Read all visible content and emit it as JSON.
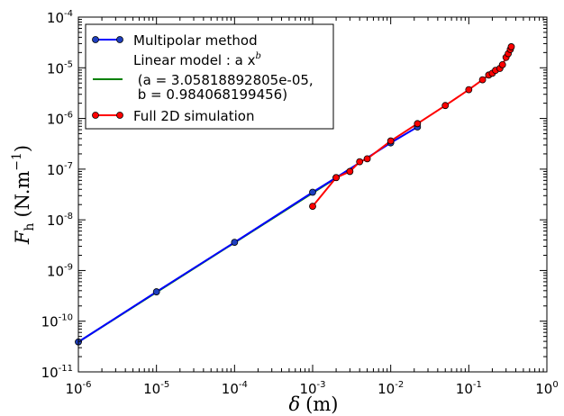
{
  "chart_data": {
    "type": "line",
    "xscale": "log",
    "yscale": "log",
    "xlim": [
      1e-06,
      1
    ],
    "ylim": [
      1e-11,
      0.0001
    ],
    "xlabel_main": "δ",
    "xlabel_unit": "(m)",
    "ylabel_main": "F",
    "ylabel_sub": "h",
    "ylabel_unit": "(N.m",
    "ylabel_exp": "−1",
    "ylabel_close": ")",
    "xticks": [
      {
        "value": 1e-06,
        "base": "10",
        "exp": "-6"
      },
      {
        "value": 1e-05,
        "base": "10",
        "exp": "-5"
      },
      {
        "value": 0.0001,
        "base": "10",
        "exp": "-4"
      },
      {
        "value": 0.001,
        "base": "10",
        "exp": "-3"
      },
      {
        "value": 0.01,
        "base": "10",
        "exp": "-2"
      },
      {
        "value": 0.1,
        "base": "10",
        "exp": "-1"
      },
      {
        "value": 1,
        "base": "10",
        "exp": "0"
      }
    ],
    "yticks": [
      {
        "value": 1e-11,
        "base": "10",
        "exp": "-11"
      },
      {
        "value": 1e-10,
        "base": "10",
        "exp": "-10"
      },
      {
        "value": 1e-09,
        "base": "10",
        "exp": "-9"
      },
      {
        "value": 1e-08,
        "base": "10",
        "exp": "-8"
      },
      {
        "value": 1e-07,
        "base": "10",
        "exp": "-7"
      },
      {
        "value": 1e-06,
        "base": "10",
        "exp": "-6"
      },
      {
        "value": 1e-05,
        "base": "10",
        "exp": "-5"
      },
      {
        "value": 0.0001,
        "base": "10",
        "exp": "-4"
      }
    ],
    "series": [
      {
        "key": "linear",
        "color": "#008000",
        "marker": "none",
        "x": [
          1e-06,
          0.0025
        ],
        "y": [
          3.9e-11,
          8.3e-08
        ]
      },
      {
        "key": "multipolar",
        "color": "#0000ff",
        "marker": "circle",
        "x": [
          1e-06,
          1e-05,
          0.0001,
          0.001,
          0.002,
          0.01,
          0.022
        ],
        "y": [
          3.9e-11,
          3.8e-10,
          3.6e-09,
          3.5e-08,
          6.8e-08,
          3.3e-07,
          6.8e-07
        ]
      },
      {
        "key": "full2d",
        "color": "#ff0000",
        "marker": "circle",
        "x": [
          0.001,
          0.002,
          0.003,
          0.004,
          0.005,
          0.01,
          0.022,
          0.05,
          0.1,
          0.15,
          0.18,
          0.2,
          0.22,
          0.25,
          0.27,
          0.3,
          0.32,
          0.34,
          0.35
        ],
        "y": [
          1.85e-08,
          6.8e-08,
          9e-08,
          1.4e-07,
          1.6e-07,
          3.6e-07,
          7.9e-07,
          1.8e-06,
          3.7e-06,
          5.8e-06,
          7.2e-06,
          7.8e-06,
          8.9e-06,
          9.7e-06,
          1.15e-05,
          1.6e-05,
          1.9e-05,
          2.3e-05,
          2.6e-05
        ]
      }
    ],
    "legend": {
      "placement": "top-left",
      "entries": [
        {
          "key": "multipolar",
          "line1": "Multipolar method",
          "line2": "",
          "line3": ""
        },
        {
          "key": "linear",
          "line1": "Linear model : a x",
          "line1_sup": "b",
          "line2": " (a = 3.05818892805e-05,",
          "line3": " b = 0.984068199456)"
        },
        {
          "key": "full2d",
          "line1": "Full 2D simulation",
          "line2": "",
          "line3": ""
        }
      ]
    }
  }
}
